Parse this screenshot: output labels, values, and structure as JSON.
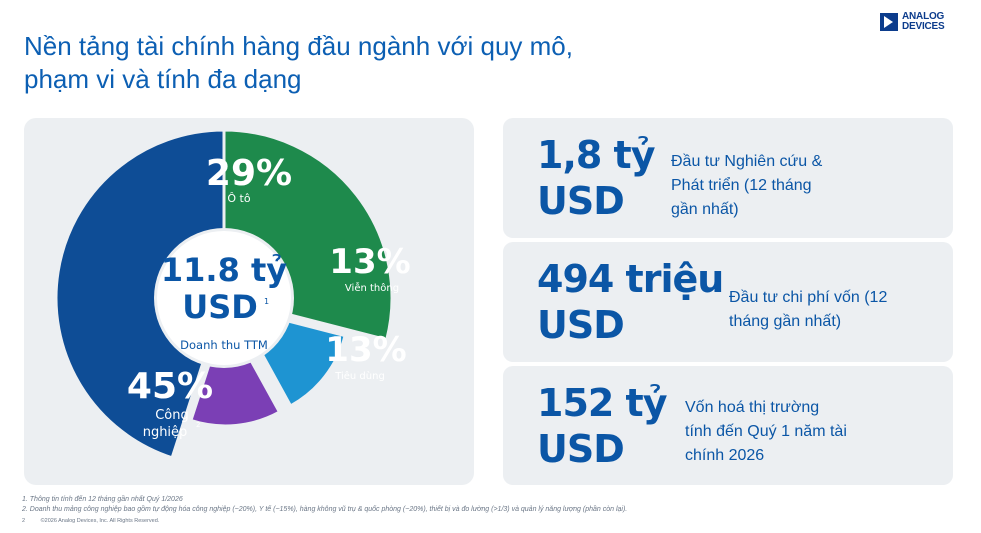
{
  "title": {
    "line1": "Nền tảng tài chính hàng đầu ngành với quy mô,",
    "line2": "phạm vi và tính đa dạng"
  },
  "logo": {
    "line1": "ANALOG",
    "line2": "DEVICES"
  },
  "chart_data": {
    "type": "pie",
    "categories": [
      "Ô tô",
      "Viễn thông",
      "Tiêu dùng",
      "Công nghiệp"
    ],
    "values": [
      29,
      13,
      13,
      45
    ],
    "labels": [
      "29%",
      "13%",
      "13%",
      "45%"
    ],
    "colors": [
      "#1e8a4c",
      "#1e94d2",
      "#7b3fb5",
      "#0e4d96"
    ],
    "center": {
      "value_line1": "11.8 tỷ",
      "value_line2": "USD",
      "value_sup": "1",
      "caption": "Doanh thu TTM"
    },
    "industrial_sup": "2"
  },
  "stats": [
    {
      "value_line1": "1,8 tỷ",
      "value_line2": "USD",
      "desc": [
        "Đầu tư Nghiên cứu  &",
        "Phát triển (12 tháng",
        "gần nhất)"
      ]
    },
    {
      "value_line1": "494 triệu",
      "value_line2": "USD",
      "desc": [
        "Đầu tư chi phí vốn (12",
        "tháng gần nhất)"
      ]
    },
    {
      "value_line1": "152 tỷ",
      "value_line2": "USD",
      "desc": [
        "Vốn hoá thị trường",
        "tính đến Quý 1 năm tài",
        "chính 2026"
      ]
    }
  ],
  "footnotes": {
    "note1": "1.  Thông tin tính đến 12 tháng gần nhất Quý 1/2026",
    "note2": "2.  Doanh thu mảng công nghiệp bao gồm tự động hóa công nghiệp (~20%), Y tế (~15%), hàng không vũ trụ & quốc phòng (~20%), thiết bị và đo lường (>1/3) và quản lý năng lượng (phần còn lại).",
    "page": "2",
    "copyright": "©2026 Analog Devices, Inc. All Rights Reserved."
  }
}
